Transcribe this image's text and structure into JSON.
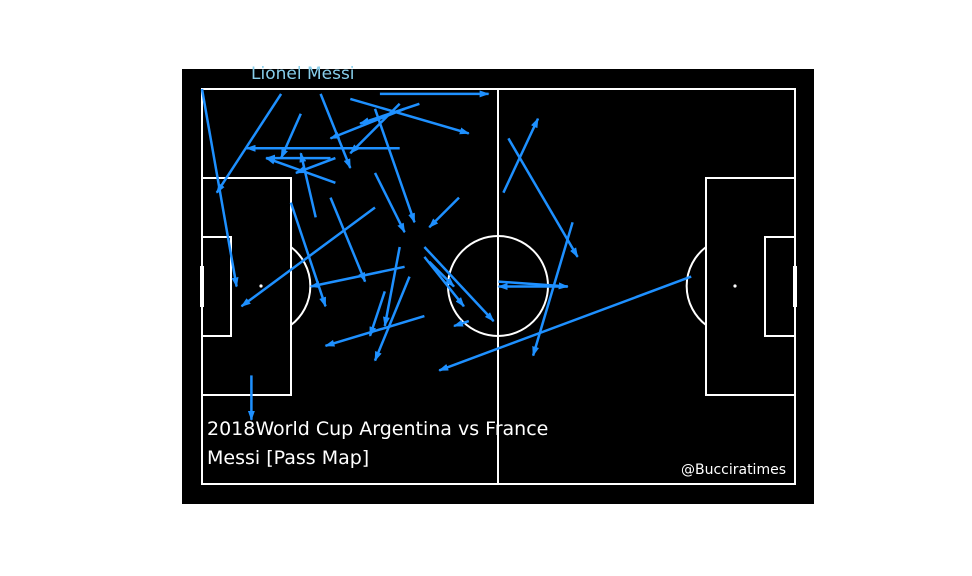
{
  "colors": {
    "background": "#ffffff",
    "pitch": "#000000",
    "lines": "#ffffff",
    "pass_arrow": "#1e90ff",
    "player_label": "#87ceeb",
    "title_text": "#ffffff"
  },
  "chart_data": {
    "type": "pass_map",
    "player_label": "Lionel Messi",
    "title_line1": "2018World Cup Argentina vs France",
    "title_line2": "Messi [Pass Map]",
    "credit": "@Bucciratimes",
    "pitch": {
      "length": 120,
      "width": 80
    },
    "passes": [
      {
        "from": [
          0,
          0
        ],
        "to": [
          7,
          40
        ]
      },
      {
        "from": [
          16,
          1
        ],
        "to": [
          3,
          21
        ]
      },
      {
        "from": [
          24,
          1
        ],
        "to": [
          30,
          16
        ]
      },
      {
        "from": [
          30,
          2
        ],
        "to": [
          54,
          9
        ]
      },
      {
        "from": [
          40,
          3
        ],
        "to": [
          30,
          13
        ]
      },
      {
        "from": [
          44,
          3
        ],
        "to": [
          32,
          7
        ]
      },
      {
        "from": [
          41,
          4
        ],
        "to": [
          26,
          10
        ]
      },
      {
        "from": [
          36,
          1
        ],
        "to": [
          58,
          1
        ]
      },
      {
        "from": [
          20,
          5
        ],
        "to": [
          16,
          14
        ]
      },
      {
        "from": [
          35,
          4
        ],
        "to": [
          43,
          27
        ]
      },
      {
        "from": [
          26,
          14
        ],
        "to": [
          13,
          14
        ]
      },
      {
        "from": [
          40,
          12
        ],
        "to": [
          9,
          12
        ]
      },
      {
        "from": [
          27,
          14
        ],
        "to": [
          19,
          17
        ]
      },
      {
        "from": [
          27,
          19
        ],
        "to": [
          13,
          14
        ]
      },
      {
        "from": [
          23,
          26
        ],
        "to": [
          20,
          13
        ]
      },
      {
        "from": [
          35,
          17
        ],
        "to": [
          41,
          29
        ]
      },
      {
        "from": [
          26,
          22
        ],
        "to": [
          33,
          39
        ]
      },
      {
        "from": [
          35,
          24
        ],
        "to": [
          8,
          44
        ]
      },
      {
        "from": [
          52,
          22
        ],
        "to": [
          46,
          28
        ]
      },
      {
        "from": [
          62,
          10
        ],
        "to": [
          76,
          34
        ]
      },
      {
        "from": [
          61,
          21
        ],
        "to": [
          68,
          6
        ]
      },
      {
        "from": [
          75,
          27
        ],
        "to": [
          67,
          54
        ]
      },
      {
        "from": [
          41,
          36
        ],
        "to": [
          22,
          40
        ]
      },
      {
        "from": [
          40,
          32
        ],
        "to": [
          37,
          48
        ]
      },
      {
        "from": [
          42,
          38
        ],
        "to": [
          35,
          55
        ]
      },
      {
        "from": [
          37,
          41
        ],
        "to": [
          34,
          50
        ]
      },
      {
        "from": [
          45,
          34
        ],
        "to": [
          53,
          44
        ]
      },
      {
        "from": [
          46,
          35
        ],
        "to": [
          51,
          40
        ]
      },
      {
        "from": [
          45,
          32
        ],
        "to": [
          59,
          47
        ]
      },
      {
        "from": [
          54,
          47
        ],
        "to": [
          51,
          48
        ]
      },
      {
        "from": [
          60,
          39
        ],
        "to": [
          74,
          40
        ]
      },
      {
        "from": [
          74,
          40
        ],
        "to": [
          60,
          40
        ]
      },
      {
        "from": [
          45,
          46
        ],
        "to": [
          25,
          52
        ]
      },
      {
        "from": [
          99,
          38
        ],
        "to": [
          48,
          57
        ]
      },
      {
        "from": [
          10,
          58
        ],
        "to": [
          10,
          67
        ]
      },
      {
        "from": [
          18,
          23
        ],
        "to": [
          25,
          44
        ]
      }
    ]
  }
}
